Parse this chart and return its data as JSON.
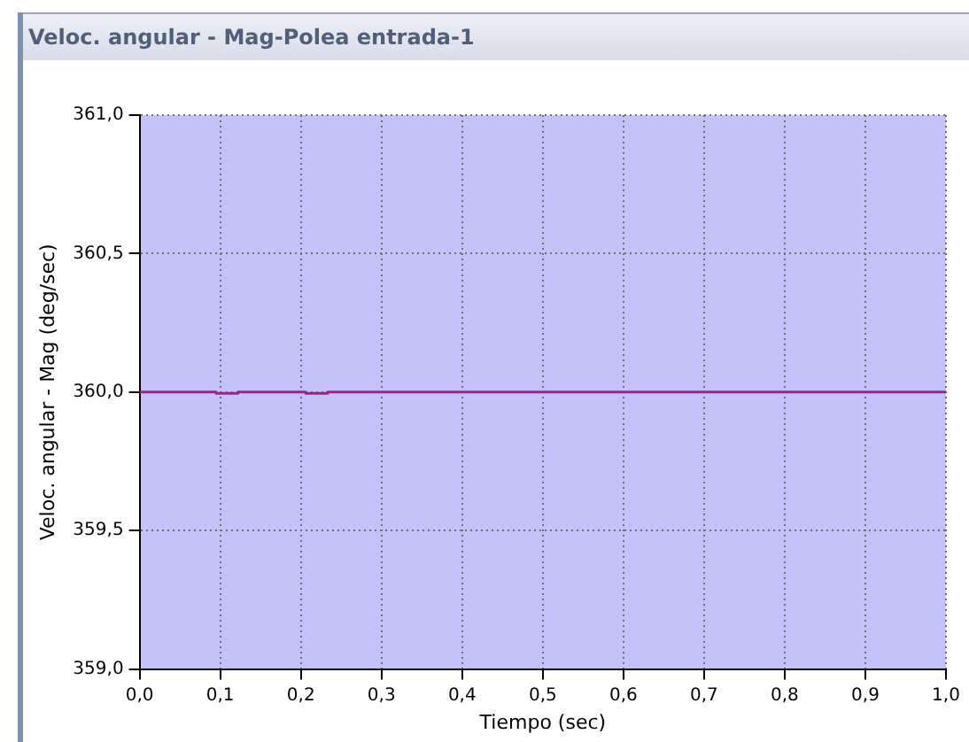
{
  "chart_data": {
    "type": "line",
    "title": "Veloc. angular - Mag-Polea entrada-1",
    "xlabel": "Tiempo (sec)",
    "ylabel": "Veloc. angular - Mag (deg/sec)",
    "x": [
      0,
      0.095,
      0.095,
      0.122,
      0.122,
      0.206,
      0.206,
      0.233,
      0.233,
      1
    ],
    "series": [
      {
        "color": "#a0208c",
        "values": [
          360,
          360,
          359.995,
          359.995,
          360,
          360,
          359.995,
          359.995,
          360,
          360
        ]
      }
    ],
    "xlim": [
      0,
      1
    ],
    "xticks": [
      {
        "value": 0,
        "label": "0,0"
      },
      {
        "value": 0.1,
        "label": "0,1"
      },
      {
        "value": 0.2,
        "label": "0,2"
      },
      {
        "value": 0.3,
        "label": "0,3"
      },
      {
        "value": 0.4,
        "label": "0,4"
      },
      {
        "value": 0.5,
        "label": "0,5"
      },
      {
        "value": 0.6,
        "label": "0,6"
      },
      {
        "value": 0.7,
        "label": "0,7"
      },
      {
        "value": 0.8,
        "label": "0,8"
      },
      {
        "value": 0.9,
        "label": "0,9"
      },
      {
        "value": 1,
        "label": "1,0"
      }
    ],
    "ylim": [
      359,
      361
    ],
    "yticks": [
      {
        "value": 359,
        "label": "359,0"
      },
      {
        "value": 359.5,
        "label": "359,5"
      },
      {
        "value": 360,
        "label": "360,0"
      },
      {
        "value": 360.5,
        "label": "360,5"
      },
      {
        "value": 361,
        "label": "361,0"
      }
    ],
    "grid": true,
    "legend": false,
    "line_style": "solid"
  }
}
